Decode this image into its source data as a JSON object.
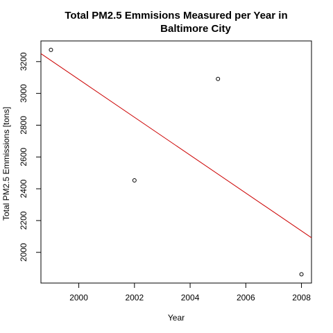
{
  "chart_data": {
    "type": "scatter",
    "title_lines": [
      "Total PM2.5 Emmisions Measured per Year in",
      "Baltimore City"
    ],
    "xlabel": "Year",
    "ylabel": "Total PM2.5 Emmissions [tons]",
    "x_ticks": [
      2000,
      2002,
      2004,
      2006,
      2008
    ],
    "y_ticks": [
      2000,
      2200,
      2400,
      2600,
      2800,
      3000,
      3200
    ],
    "xlim": [
      1998.64,
      2008.36
    ],
    "ylim": [
      1806.88,
      3330.0
    ],
    "points": [
      {
        "x": 1999,
        "y": 3274
      },
      {
        "x": 2002,
        "y": 2453
      },
      {
        "x": 2005,
        "y": 3091
      },
      {
        "x": 2008,
        "y": 1862
      }
    ],
    "trendline": {
      "color": "#cc0000",
      "from": {
        "x": 1998.64,
        "y": 3250
      },
      "to": {
        "x": 2008.36,
        "y": 2092
      }
    },
    "grid": false,
    "legend": "none"
  }
}
